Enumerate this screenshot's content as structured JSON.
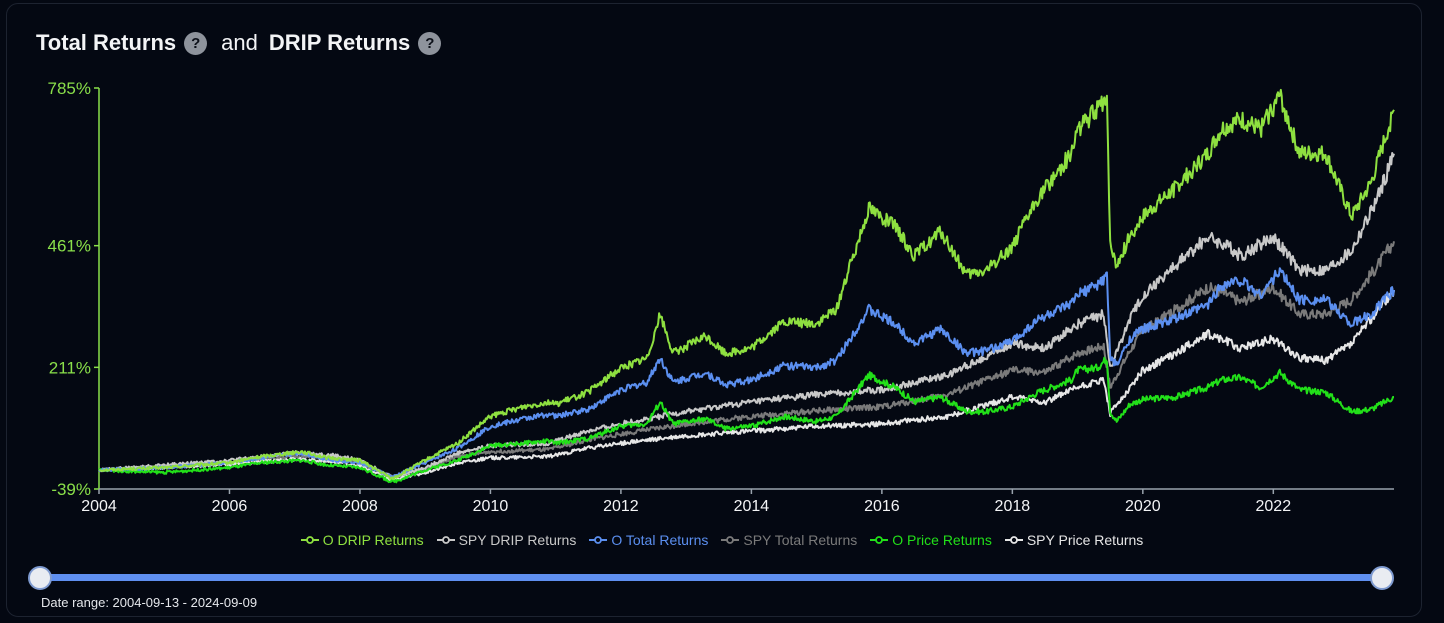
{
  "title": {
    "part1": "Total Returns",
    "connector": "and",
    "part2": "DRIP Returns",
    "help_symbol": "?"
  },
  "date_range_text": "Date range: 2004-09-13 - 2024-09-09",
  "colors": {
    "background": "#040812",
    "axis": "#8ae04a",
    "o_drip": "#8ee040",
    "spy_drip": "#c8c8c8",
    "o_total": "#5b8ff0",
    "spy_total": "#7a7a7a",
    "o_price": "#22e019",
    "spy_price": "#e6e6e6"
  },
  "chart_data": {
    "type": "line",
    "title": "Total Returns and DRIP Returns",
    "xlabel": "",
    "ylabel": "",
    "x_range": [
      2004.0,
      2023.85
    ],
    "ylim": [
      -39,
      785
    ],
    "y_ticks": [
      {
        "value": 785,
        "label": "785%"
      },
      {
        "value": 461,
        "label": "461%"
      },
      {
        "value": 211,
        "label": "211%"
      },
      {
        "value": -39,
        "label": "-39%"
      }
    ],
    "x_ticks": [
      {
        "value": 2004,
        "label": "2004"
      },
      {
        "value": 2006,
        "label": "2006"
      },
      {
        "value": 2008,
        "label": "2008"
      },
      {
        "value": 2010,
        "label": "2010"
      },
      {
        "value": 2012,
        "label": "2012"
      },
      {
        "value": 2014,
        "label": "2014"
      },
      {
        "value": 2016,
        "label": "2016"
      },
      {
        "value": 2018,
        "label": "2018"
      },
      {
        "value": 2020,
        "label": "2020"
      },
      {
        "value": 2022,
        "label": "2022"
      }
    ],
    "legend_position": "bottom-center",
    "grid": false,
    "series": [
      {
        "name": "O DRIP Returns",
        "color": "#8ee040",
        "legend_text_color": "#8ee040",
        "points": [
          [
            2004.0,
            0
          ],
          [
            2005.0,
            5
          ],
          [
            2006.0,
            15
          ],
          [
            2006.5,
            28
          ],
          [
            2007.1,
            38
          ],
          [
            2007.5,
            25
          ],
          [
            2008.0,
            20
          ],
          [
            2008.5,
            -18
          ],
          [
            2009.0,
            20
          ],
          [
            2009.5,
            55
          ],
          [
            2010.0,
            110
          ],
          [
            2010.5,
            130
          ],
          [
            2010.9,
            140
          ],
          [
            2011.0,
            135
          ],
          [
            2011.5,
            160
          ],
          [
            2012.0,
            210
          ],
          [
            2012.4,
            230
          ],
          [
            2012.6,
            320
          ],
          [
            2012.8,
            240
          ],
          [
            2013.3,
            275
          ],
          [
            2013.6,
            240
          ],
          [
            2014.0,
            250
          ],
          [
            2014.5,
            305
          ],
          [
            2015.0,
            300
          ],
          [
            2015.3,
            330
          ],
          [
            2015.8,
            540
          ],
          [
            2016.2,
            500
          ],
          [
            2016.5,
            440
          ],
          [
            2016.9,
            490
          ],
          [
            2017.3,
            400
          ],
          [
            2017.6,
            410
          ],
          [
            2018.0,
            460
          ],
          [
            2018.4,
            560
          ],
          [
            2018.9,
            650
          ],
          [
            2019.0,
            700
          ],
          [
            2019.3,
            740
          ],
          [
            2019.45,
            770
          ],
          [
            2019.5,
            460
          ],
          [
            2019.6,
            420
          ],
          [
            2019.8,
            480
          ],
          [
            2020.0,
            520
          ],
          [
            2020.5,
            580
          ],
          [
            2021.0,
            650
          ],
          [
            2021.2,
            700
          ],
          [
            2021.5,
            720
          ],
          [
            2021.8,
            700
          ],
          [
            2022.1,
            770
          ],
          [
            2022.4,
            650
          ],
          [
            2022.8,
            650
          ],
          [
            2023.2,
            520
          ],
          [
            2023.5,
            590
          ],
          [
            2023.85,
            740
          ]
        ]
      },
      {
        "name": "SPY DRIP Returns",
        "color": "#c8c8c8",
        "legend_text_color": "#c8c8c8",
        "points": [
          [
            2004.0,
            0
          ],
          [
            2005.0,
            10
          ],
          [
            2006.0,
            20
          ],
          [
            2007.0,
            35
          ],
          [
            2007.6,
            30
          ],
          [
            2008.0,
            20
          ],
          [
            2008.5,
            -15
          ],
          [
            2009.0,
            5
          ],
          [
            2009.5,
            35
          ],
          [
            2010.0,
            50
          ],
          [
            2010.9,
            55
          ],
          [
            2011.5,
            80
          ],
          [
            2012.0,
            95
          ],
          [
            2013.0,
            120
          ],
          [
            2014.0,
            140
          ],
          [
            2015.0,
            155
          ],
          [
            2016.0,
            165
          ],
          [
            2017.0,
            195
          ],
          [
            2018.0,
            260
          ],
          [
            2018.5,
            250
          ],
          [
            2019.0,
            300
          ],
          [
            2019.4,
            320
          ],
          [
            2019.5,
            210
          ],
          [
            2019.8,
            310
          ],
          [
            2020.0,
            360
          ],
          [
            2020.5,
            420
          ],
          [
            2021.0,
            480
          ],
          [
            2021.3,
            460
          ],
          [
            2021.5,
            440
          ],
          [
            2022.0,
            480
          ],
          [
            2022.4,
            410
          ],
          [
            2022.8,
            410
          ],
          [
            2023.2,
            450
          ],
          [
            2023.6,
            560
          ],
          [
            2023.85,
            650
          ]
        ]
      },
      {
        "name": "O Total Returns",
        "color": "#5b8ff0",
        "legend_text_color": "#5b8ff0",
        "points": [
          [
            2004.0,
            0
          ],
          [
            2005.0,
            5
          ],
          [
            2006.0,
            15
          ],
          [
            2006.5,
            25
          ],
          [
            2007.1,
            35
          ],
          [
            2007.5,
            22
          ],
          [
            2008.0,
            15
          ],
          [
            2008.5,
            -15
          ],
          [
            2009.0,
            15
          ],
          [
            2009.5,
            45
          ],
          [
            2010.0,
            90
          ],
          [
            2010.5,
            105
          ],
          [
            2010.9,
            115
          ],
          [
            2011.0,
            110
          ],
          [
            2011.5,
            125
          ],
          [
            2012.0,
            165
          ],
          [
            2012.4,
            180
          ],
          [
            2012.6,
            230
          ],
          [
            2012.8,
            180
          ],
          [
            2013.3,
            200
          ],
          [
            2013.6,
            175
          ],
          [
            2014.0,
            185
          ],
          [
            2014.5,
            215
          ],
          [
            2015.0,
            210
          ],
          [
            2015.3,
            225
          ],
          [
            2015.8,
            330
          ],
          [
            2016.2,
            300
          ],
          [
            2016.5,
            260
          ],
          [
            2016.9,
            290
          ],
          [
            2017.3,
            240
          ],
          [
            2017.6,
            245
          ],
          [
            2018.0,
            265
          ],
          [
            2018.4,
            310
          ],
          [
            2018.9,
            340
          ],
          [
            2019.0,
            360
          ],
          [
            2019.3,
            380
          ],
          [
            2019.45,
            400
          ],
          [
            2019.5,
            230
          ],
          [
            2019.6,
            215
          ],
          [
            2019.8,
            270
          ],
          [
            2020.0,
            290
          ],
          [
            2020.5,
            310
          ],
          [
            2021.0,
            340
          ],
          [
            2021.2,
            380
          ],
          [
            2021.5,
            390
          ],
          [
            2021.8,
            360
          ],
          [
            2022.1,
            410
          ],
          [
            2022.4,
            350
          ],
          [
            2022.8,
            350
          ],
          [
            2023.2,
            300
          ],
          [
            2023.5,
            320
          ],
          [
            2023.85,
            370
          ]
        ]
      },
      {
        "name": "SPY Total Returns",
        "color": "#7a7a7a",
        "legend_text_color": "#7a7a7a",
        "points": [
          [
            2004.0,
            0
          ],
          [
            2005.0,
            8
          ],
          [
            2006.0,
            16
          ],
          [
            2007.0,
            28
          ],
          [
            2007.6,
            25
          ],
          [
            2008.0,
            15
          ],
          [
            2008.5,
            -15
          ],
          [
            2009.0,
            3
          ],
          [
            2009.5,
            27
          ],
          [
            2010.0,
            38
          ],
          [
            2010.9,
            42
          ],
          [
            2011.5,
            62
          ],
          [
            2012.0,
            74
          ],
          [
            2013.0,
            95
          ],
          [
            2014.0,
            110
          ],
          [
            2015.0,
            122
          ],
          [
            2016.0,
            130
          ],
          [
            2017.0,
            155
          ],
          [
            2018.0,
            205
          ],
          [
            2018.5,
            200
          ],
          [
            2019.0,
            240
          ],
          [
            2019.4,
            255
          ],
          [
            2019.5,
            170
          ],
          [
            2019.8,
            245
          ],
          [
            2020.0,
            285
          ],
          [
            2020.5,
            330
          ],
          [
            2021.0,
            375
          ],
          [
            2021.3,
            360
          ],
          [
            2021.5,
            345
          ],
          [
            2022.0,
            375
          ],
          [
            2022.4,
            320
          ],
          [
            2022.8,
            320
          ],
          [
            2023.2,
            350
          ],
          [
            2023.6,
            420
          ],
          [
            2023.85,
            470
          ]
        ]
      },
      {
        "name": "O Price Returns",
        "color": "#22e019",
        "legend_text_color": "#22e019",
        "points": [
          [
            2004.0,
            0
          ],
          [
            2005.0,
            -5
          ],
          [
            2006.0,
            5
          ],
          [
            2006.5,
            15
          ],
          [
            2007.1,
            20
          ],
          [
            2007.5,
            10
          ],
          [
            2008.0,
            5
          ],
          [
            2008.5,
            -25
          ],
          [
            2009.0,
            0
          ],
          [
            2009.5,
            20
          ],
          [
            2010.0,
            50
          ],
          [
            2010.5,
            55
          ],
          [
            2010.9,
            60
          ],
          [
            2011.0,
            55
          ],
          [
            2011.5,
            65
          ],
          [
            2012.0,
            90
          ],
          [
            2012.4,
            95
          ],
          [
            2012.6,
            140
          ],
          [
            2012.8,
            95
          ],
          [
            2013.3,
            105
          ],
          [
            2013.6,
            85
          ],
          [
            2014.0,
            90
          ],
          [
            2014.5,
            110
          ],
          [
            2015.0,
            100
          ],
          [
            2015.3,
            110
          ],
          [
            2015.8,
            195
          ],
          [
            2016.2,
            170
          ],
          [
            2016.5,
            140
          ],
          [
            2016.9,
            150
          ],
          [
            2017.3,
            120
          ],
          [
            2017.6,
            120
          ],
          [
            2018.0,
            130
          ],
          [
            2018.4,
            160
          ],
          [
            2018.9,
            185
          ],
          [
            2019.0,
            205
          ],
          [
            2019.3,
            210
          ],
          [
            2019.45,
            230
          ],
          [
            2019.5,
            120
          ],
          [
            2019.6,
            100
          ],
          [
            2019.8,
            135
          ],
          [
            2020.0,
            145
          ],
          [
            2020.5,
            150
          ],
          [
            2021.0,
            170
          ],
          [
            2021.2,
            185
          ],
          [
            2021.5,
            190
          ],
          [
            2021.8,
            170
          ],
          [
            2022.1,
            200
          ],
          [
            2022.4,
            165
          ],
          [
            2022.8,
            160
          ],
          [
            2023.2,
            120
          ],
          [
            2023.5,
            125
          ],
          [
            2023.85,
            150
          ]
        ]
      },
      {
        "name": "SPY Price Returns",
        "color": "#e6e6e6",
        "legend_text_color": "#e6e6e6",
        "points": [
          [
            2004.0,
            0
          ],
          [
            2005.0,
            5
          ],
          [
            2006.0,
            12
          ],
          [
            2007.0,
            22
          ],
          [
            2007.6,
            18
          ],
          [
            2008.0,
            8
          ],
          [
            2008.5,
            -20
          ],
          [
            2009.0,
            -5
          ],
          [
            2009.5,
            15
          ],
          [
            2010.0,
            25
          ],
          [
            2010.9,
            28
          ],
          [
            2011.5,
            45
          ],
          [
            2012.0,
            55
          ],
          [
            2013.0,
            70
          ],
          [
            2014.0,
            80
          ],
          [
            2015.0,
            90
          ],
          [
            2016.0,
            95
          ],
          [
            2017.0,
            110
          ],
          [
            2018.0,
            150
          ],
          [
            2018.5,
            140
          ],
          [
            2019.0,
            170
          ],
          [
            2019.4,
            185
          ],
          [
            2019.5,
            115
          ],
          [
            2019.8,
            170
          ],
          [
            2020.0,
            205
          ],
          [
            2020.5,
            240
          ],
          [
            2021.0,
            280
          ],
          [
            2021.3,
            265
          ],
          [
            2021.5,
            250
          ],
          [
            2022.0,
            270
          ],
          [
            2022.4,
            230
          ],
          [
            2022.8,
            225
          ],
          [
            2023.2,
            260
          ],
          [
            2023.6,
            330
          ],
          [
            2023.85,
            370
          ]
        ]
      }
    ]
  }
}
